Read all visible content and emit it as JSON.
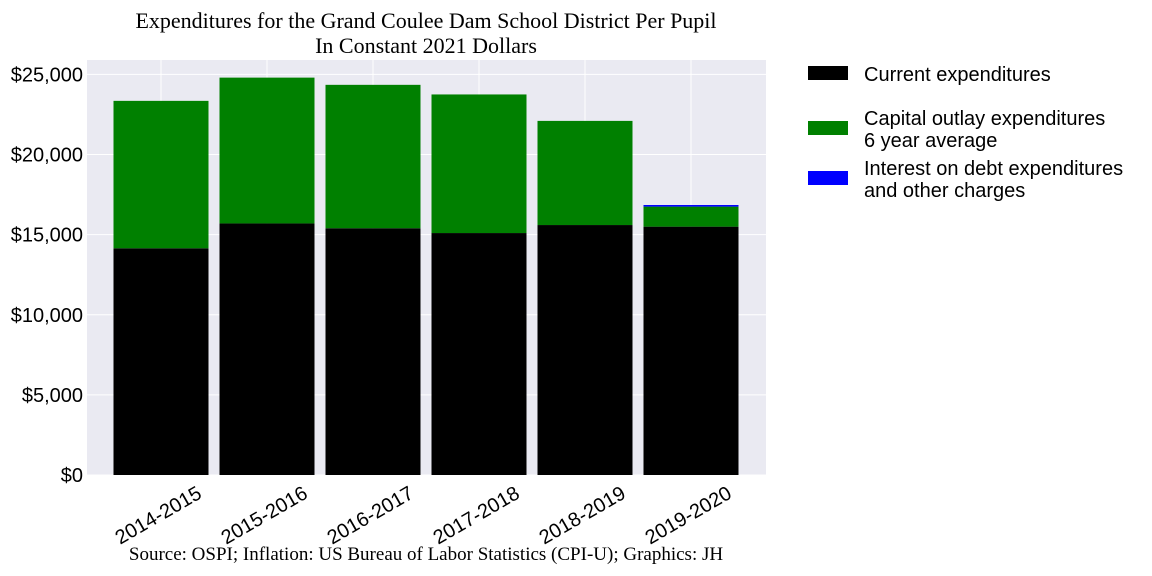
{
  "chart_data": {
    "type": "bar",
    "stacked": true,
    "title": "Expenditures for the Grand Coulee Dam School District Per Pupil",
    "subtitle": "In Constant 2021 Dollars",
    "source": "Source: OSPI; Inflation: US Bureau of Labor Statistics (CPI-U); Graphics: JH",
    "categories": [
      "2014-2015",
      "2015-2016",
      "2016-2017",
      "2017-2018",
      "2018-2019",
      "2019-2020"
    ],
    "series": [
      {
        "name_lines": [
          "Current expenditures"
        ],
        "color": "#000000",
        "values": [
          14150,
          15700,
          15400,
          15100,
          15600,
          15500
        ]
      },
      {
        "name_lines": [
          "Capital outlay expenditures",
          "6 year average"
        ],
        "color": "#008000",
        "values": [
          9200,
          9100,
          8950,
          8650,
          6500,
          1250
        ]
      },
      {
        "name_lines": [
          "Interest on debt expenditures",
          "and other charges"
        ],
        "color": "#0000ff",
        "values": [
          0,
          0,
          0,
          0,
          0,
          100
        ]
      }
    ],
    "yticks": [
      0,
      5000,
      10000,
      15000,
      20000,
      25000
    ],
    "ytick_labels": [
      "$0",
      "$5,000",
      "$10,000",
      "$15,000",
      "$20,000",
      "$25,000"
    ],
    "ylim": [
      0,
      25900
    ],
    "grid": true,
    "legend_position": "outside-right"
  }
}
